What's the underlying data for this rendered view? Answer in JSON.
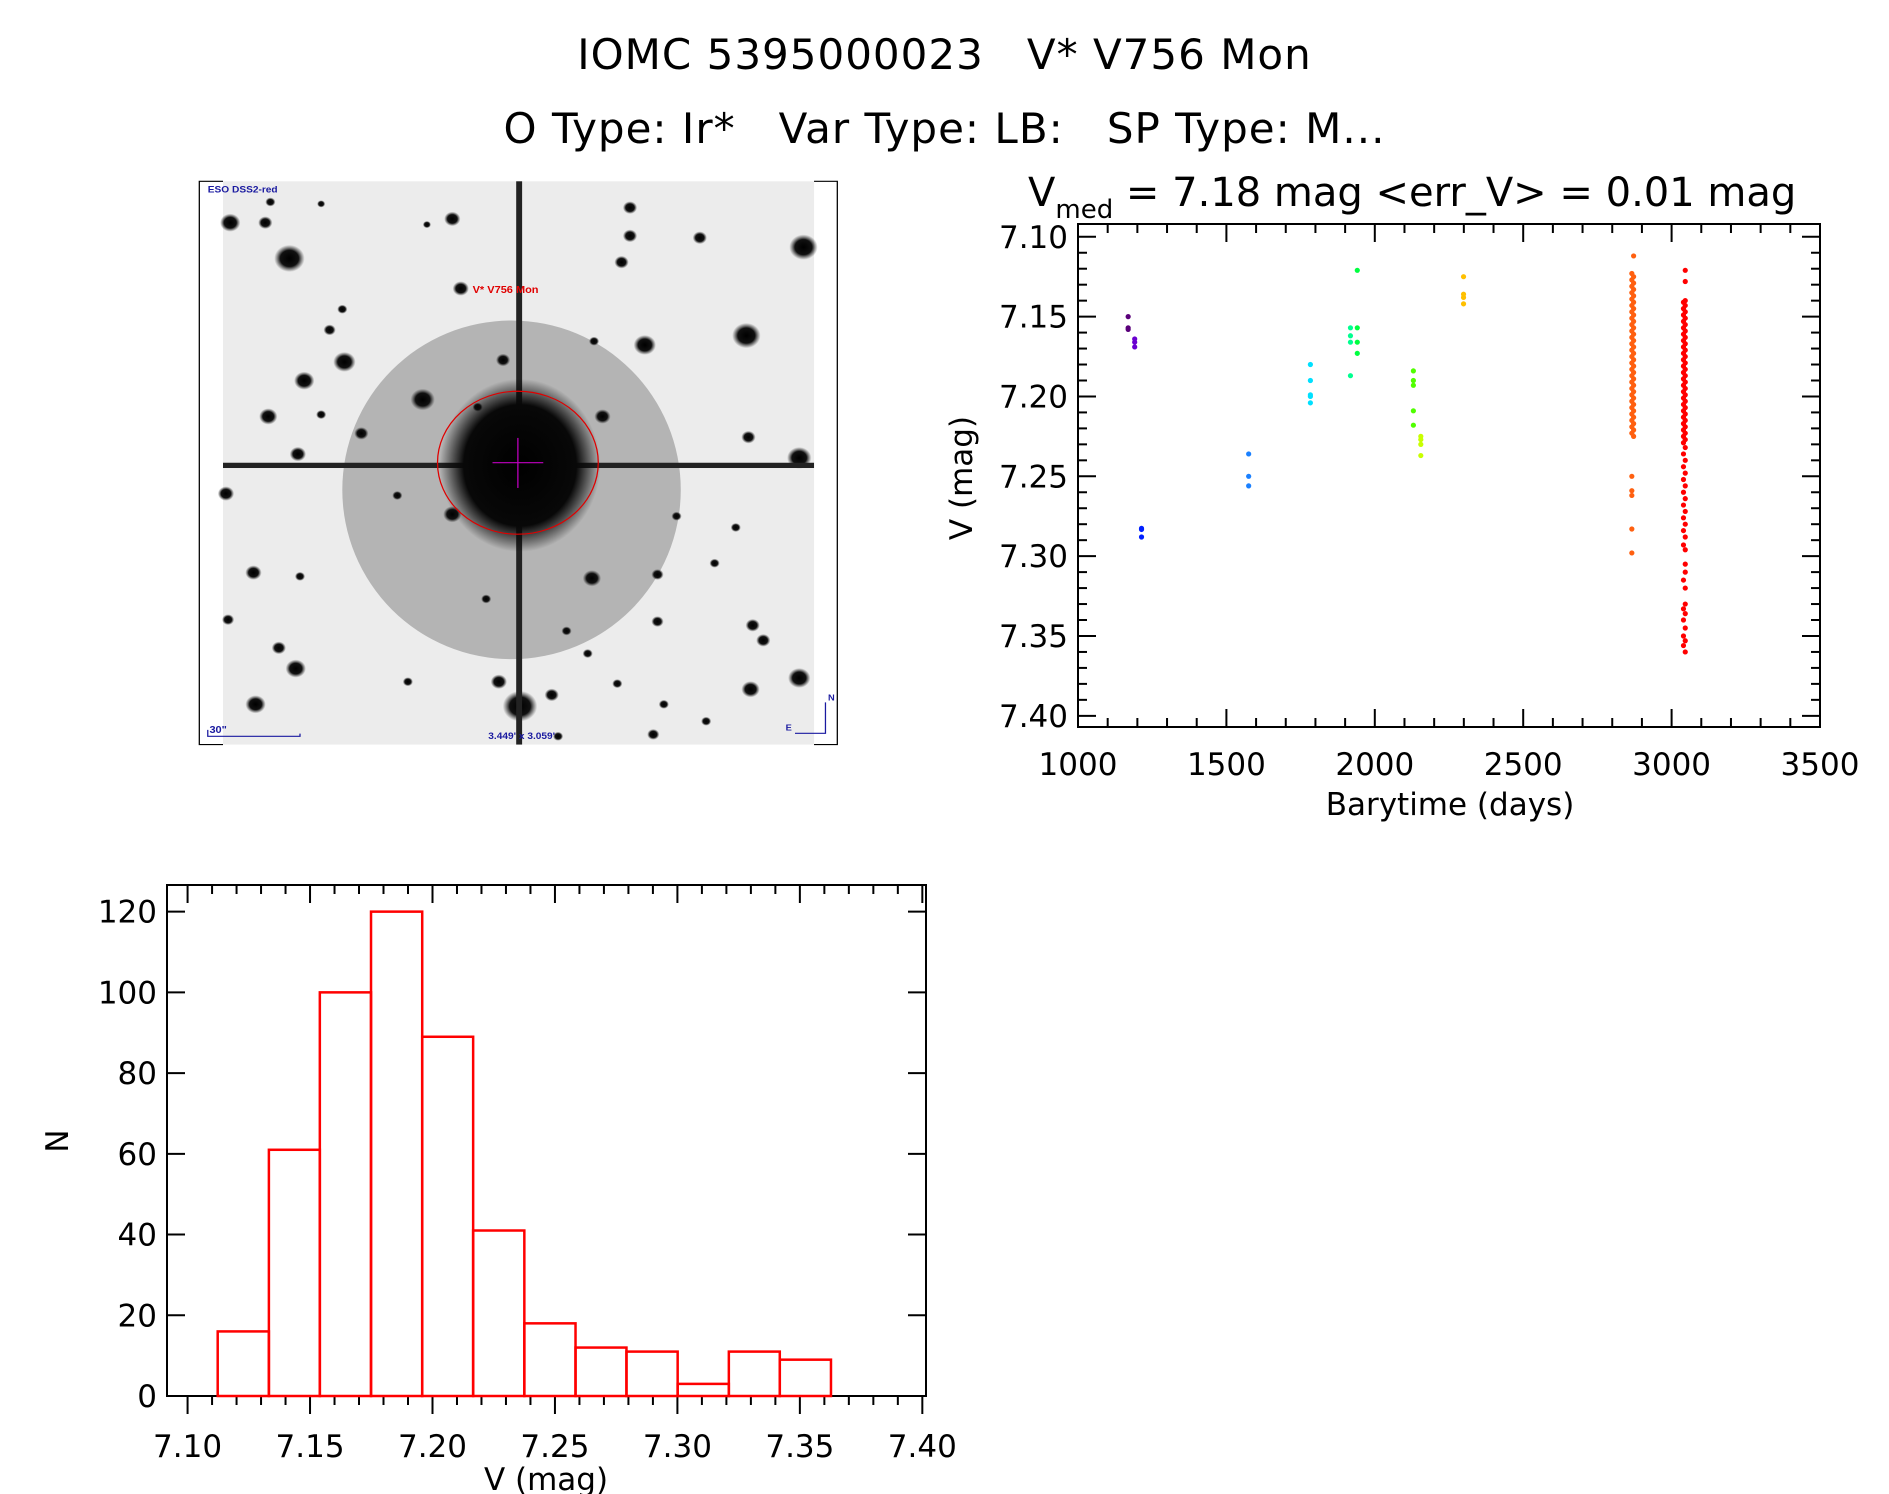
{
  "header": {
    "title_line1": "IOMC 5395000023   V* V756 Mon",
    "title_line2": "O Type: Ir*   Var Type: LB:   SP Type: M..."
  },
  "finder_image": {
    "survey_label": "ESO DSS2-red",
    "target_label": "V* V756 Mon",
    "scale_bar_label": "30\"",
    "field_size_label": "3.449' x 3.059'",
    "compass_north": "N",
    "compass_east": "E",
    "target_circle_color": "#e00000",
    "crosshair_color": "#c000c0",
    "label_color": "#1a1aa0"
  },
  "chart_data": [
    {
      "type": "scatter",
      "header_prefix": "V",
      "header_subscript": "med",
      "header_rest": " = 7.18 mag <err_V> = 0.01 mag",
      "xlabel": "Barytime (days)",
      "ylabel": "V (mag)",
      "xlim": [
        1000,
        3500
      ],
      "ylim": [
        7.092,
        7.407
      ],
      "y_inverted": true,
      "xticks": [
        "1000",
        "1500",
        "2000",
        "2500",
        "3000",
        "3500"
      ],
      "yticks": [
        "7.10",
        "7.15",
        "7.20",
        "7.25",
        "7.30",
        "7.35",
        "7.40"
      ],
      "groups": [
        {
          "x": 1169,
          "color": "#5a007a",
          "y": [
            7.15,
            7.157,
            7.158
          ]
        },
        {
          "x": 1191,
          "color": "#6a00d0",
          "y": [
            7.164,
            7.166,
            7.169
          ]
        },
        {
          "x": 1214,
          "color": "#0020ff",
          "y": [
            7.2826,
            7.2833,
            7.288
          ]
        },
        {
          "x": 1575,
          "color": "#1a80ff",
          "y": [
            7.236,
            7.25,
            7.256
          ]
        },
        {
          "x": 1783,
          "color": "#00e0ff",
          "y": [
            7.18,
            7.19,
            7.199,
            7.2,
            7.204
          ]
        },
        {
          "x": 1918,
          "color": "#00ff90",
          "y": [
            7.157,
            7.162,
            7.166,
            7.187
          ]
        },
        {
          "x": 1941,
          "color": "#00ff40",
          "y": [
            7.121,
            7.157,
            7.166,
            7.173
          ]
        },
        {
          "x": 2130,
          "color": "#50ff00",
          "y": [
            7.184,
            7.19,
            7.193,
            7.209,
            7.218
          ]
        },
        {
          "x": 2155,
          "color": "#c8ff00",
          "y": [
            7.225,
            7.227,
            7.23,
            7.237
          ]
        },
        {
          "x": 2299,
          "color": "#ffc000",
          "y": [
            7.125,
            7.136,
            7.138,
            7.142
          ]
        },
        {
          "x": 2866,
          "color": "#ff6010",
          "y": [
            7.123,
            7.127,
            7.131,
            7.135,
            7.139,
            7.143,
            7.147,
            7.151,
            7.155,
            7.159,
            7.163,
            7.167,
            7.171,
            7.175,
            7.179,
            7.183,
            7.187,
            7.191,
            7.195,
            7.199,
            7.203,
            7.207,
            7.211,
            7.215,
            7.219,
            7.223,
            7.25,
            7.259,
            7.262,
            7.283,
            7.298
          ]
        },
        {
          "x": 2872,
          "color": "#ff6010",
          "y": [
            7.112,
            7.125,
            7.129,
            7.133,
            7.137,
            7.141,
            7.145,
            7.149,
            7.153,
            7.157,
            7.161,
            7.165,
            7.169,
            7.173,
            7.177,
            7.181,
            7.185,
            7.189,
            7.193,
            7.197,
            7.201,
            7.205,
            7.209,
            7.213,
            7.217,
            7.221,
            7.225
          ]
        },
        {
          "x": 3040,
          "color": "#ff0000",
          "y": [
            7.141,
            7.145,
            7.149,
            7.153,
            7.157,
            7.161,
            7.165,
            7.169,
            7.173,
            7.177,
            7.181,
            7.185,
            7.189,
            7.193,
            7.197,
            7.201,
            7.205,
            7.209,
            7.213,
            7.217,
            7.221,
            7.225,
            7.229,
            7.236,
            7.244,
            7.252,
            7.26,
            7.268,
            7.276,
            7.284,
            7.293,
            7.315,
            7.333,
            7.34,
            7.35,
            7.356
          ]
        },
        {
          "x": 3046,
          "color": "#ff0000",
          "y": [
            7.121,
            7.128,
            7.14,
            7.143,
            7.147,
            7.151,
            7.155,
            7.159,
            7.163,
            7.167,
            7.171,
            7.175,
            7.179,
            7.183,
            7.187,
            7.191,
            7.195,
            7.199,
            7.203,
            7.207,
            7.211,
            7.215,
            7.219,
            7.223,
            7.227,
            7.232,
            7.24,
            7.248,
            7.256,
            7.264,
            7.272,
            7.28,
            7.288,
            7.296,
            7.305,
            7.31,
            7.32,
            7.33,
            7.336,
            7.345,
            7.353,
            7.36
          ]
        }
      ]
    },
    {
      "type": "bar",
      "subtype": "histogram",
      "xlabel": "V (mag)",
      "ylabel": "N",
      "xlim": [
        7.0916,
        7.4015
      ],
      "ylim": [
        0,
        126.6
      ],
      "xticks": [
        "7.10",
        "7.15",
        "7.20",
        "7.25",
        "7.30",
        "7.35",
        "7.40"
      ],
      "yticks": [
        "0",
        "20",
        "40",
        "60",
        "80",
        "100",
        "120"
      ],
      "bin_edges": [
        7.1123,
        7.1332,
        7.154,
        7.1749,
        7.1958,
        7.2166,
        7.2375,
        7.2584,
        7.2792,
        7.3001,
        7.321,
        7.3418,
        7.3627
      ],
      "values": [
        16,
        61,
        100,
        120,
        89,
        41,
        18,
        12,
        11,
        3,
        11,
        9
      ],
      "color": "#ff0000"
    }
  ]
}
